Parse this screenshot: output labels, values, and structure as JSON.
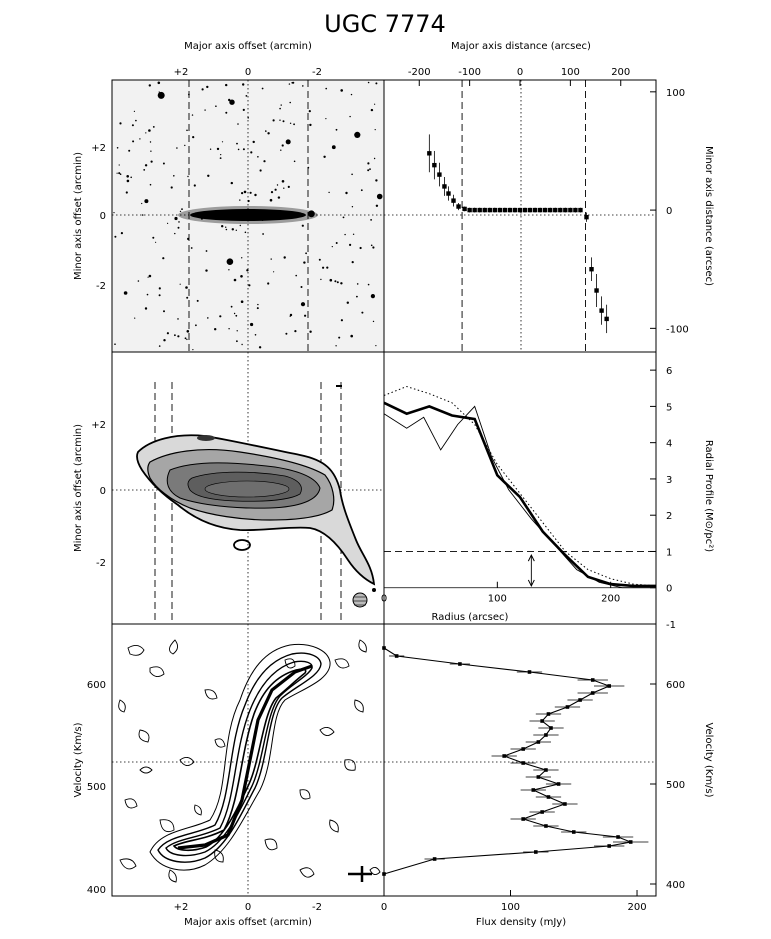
{
  "title": "UGC 7774",
  "chart_data": [
    {
      "type": "other",
      "panel": "optical-image",
      "top_xlabel": "Major axis offset (arcmin)",
      "ylabel": "Minor axis offset (arcmin)",
      "top_xticks": [
        "+2",
        "0",
        "-2"
      ],
      "yticks": [
        "+2",
        "0",
        "-2"
      ],
      "grid": "dotted at 0",
      "dashed_lines": "vertical, at the ends of the HI disk"
    },
    {
      "type": "scatter",
      "panel": "warp-minor-axis",
      "top_xlabel": "Major axis distance (arcsec)",
      "ylabel": "Minor axis distance (arcsec)",
      "top_xticks": [
        "-200",
        "-100",
        "0",
        "100",
        "200"
      ],
      "yticks": [
        "100",
        "0",
        "-100"
      ],
      "xlim": [
        -270,
        270
      ],
      "ylim": [
        -120,
        110
      ],
      "x": [
        -180,
        -170,
        -160,
        -150,
        -142,
        -132,
        -122,
        -110,
        -100,
        -90,
        -80,
        -70,
        -60,
        -50,
        -40,
        -30,
        -20,
        -10,
        0,
        10,
        20,
        30,
        40,
        50,
        60,
        70,
        80,
        90,
        100,
        110,
        120,
        132,
        142,
        152,
        162,
        172
      ],
      "y": [
        48,
        38,
        30,
        20,
        14,
        8,
        3,
        1,
        0,
        0,
        0,
        0,
        0,
        0,
        0,
        0,
        0,
        0,
        0,
        0,
        0,
        0,
        0,
        0,
        0,
        0,
        0,
        0,
        0,
        0,
        0,
        -6,
        -50,
        -68,
        -85,
        -92
      ],
      "err": [
        16,
        12,
        10,
        8,
        6,
        5,
        3,
        2,
        2,
        2,
        2,
        2,
        2,
        2,
        2,
        2,
        2,
        2,
        2,
        2,
        2,
        2,
        2,
        2,
        2,
        2,
        2,
        2,
        2,
        2,
        2,
        4,
        10,
        14,
        12,
        12
      ],
      "dashed_lines_x": [
        -115,
        130
      ]
    },
    {
      "type": "other",
      "panel": "HI-total-intensity-map",
      "ylabel": "Minor axis offset (arcmin)",
      "yticks": [
        "+2",
        "0",
        "-2"
      ],
      "dashed_lines": "vertical pairs near both ends"
    },
    {
      "type": "line",
      "panel": "radial-profile",
      "xlabel": "Radius (arcsec)",
      "ylabel": "Radial Profile (M⊙/pc²)",
      "xticks": [
        "0",
        "100",
        "200"
      ],
      "yticks": [
        "6",
        "5",
        "4",
        "3",
        "2",
        "1",
        "0",
        "-1"
      ],
      "xlim": [
        0,
        240
      ],
      "ylim": [
        -1,
        6.5
      ],
      "series": [
        {
          "style": "thick",
          "x": [
            0,
            20,
            40,
            60,
            80,
            100,
            120,
            140,
            160,
            180,
            200,
            220,
            240
          ],
          "y": [
            5.1,
            4.8,
            5.0,
            4.75,
            4.65,
            3.1,
            2.5,
            1.55,
            0.9,
            0.3,
            0.1,
            0.05,
            0.05
          ]
        },
        {
          "style": "thin",
          "x": [
            0,
            20,
            35,
            50,
            65,
            80,
            95,
            110,
            130,
            150,
            170,
            190,
            210,
            240
          ],
          "y": [
            4.8,
            4.4,
            4.7,
            3.8,
            4.5,
            5.0,
            3.6,
            2.7,
            1.9,
            1.2,
            0.5,
            0.15,
            0.0,
            0.0
          ]
        },
        {
          "style": "dotted",
          "x": [
            0,
            20,
            40,
            60,
            80,
            100,
            120,
            140,
            160,
            180,
            200,
            220,
            240
          ],
          "y": [
            5.3,
            5.55,
            5.35,
            5.1,
            4.5,
            3.4,
            2.6,
            1.8,
            1.0,
            0.5,
            0.25,
            0.1,
            0.05
          ]
        }
      ],
      "dashed_line_y": 1,
      "arrow_x": 130
    },
    {
      "type": "other",
      "panel": "position-velocity-diagram",
      "xlabel": "Major axis offset (arcmin)",
      "ylabel": "Velocity (Km/s)",
      "xticks": [
        "+2",
        "0",
        "-2"
      ],
      "yticks": [
        "600",
        "500",
        "400"
      ]
    },
    {
      "type": "line",
      "panel": "global-profile",
      "xlabel": "Flux density (mJy)",
      "ylabel": "Velocity (Km/s)",
      "xticks": [
        "0",
        "100",
        "200"
      ],
      "yticks": [
        "600",
        "500",
        "400"
      ],
      "xlim": [
        0,
        215
      ],
      "ylim": [
        388,
        660
      ],
      "velocity": [
        410,
        425,
        432,
        438,
        442,
        447,
        452,
        458,
        465,
        472,
        480,
        487,
        494,
        500,
        507,
        514,
        521,
        528,
        535,
        542,
        549,
        556,
        563,
        570,
        577,
        584,
        591,
        598,
        604,
        612,
        620,
        628,
        636
      ],
      "flux": [
        0,
        40,
        120,
        178,
        195,
        185,
        150,
        128,
        110,
        125,
        143,
        130,
        118,
        138,
        122,
        128,
        110,
        95,
        110,
        122,
        128,
        132,
        125,
        130,
        145,
        155,
        165,
        178,
        165,
        115,
        60,
        10,
        0
      ],
      "err": [
        0,
        8,
        10,
        12,
        14,
        12,
        10,
        10,
        10,
        10,
        10,
        10,
        10,
        10,
        10,
        10,
        10,
        10,
        10,
        10,
        10,
        10,
        10,
        10,
        10,
        10,
        12,
        12,
        12,
        10,
        8,
        6,
        0
      ],
      "systemic_velocity": 522
    }
  ]
}
